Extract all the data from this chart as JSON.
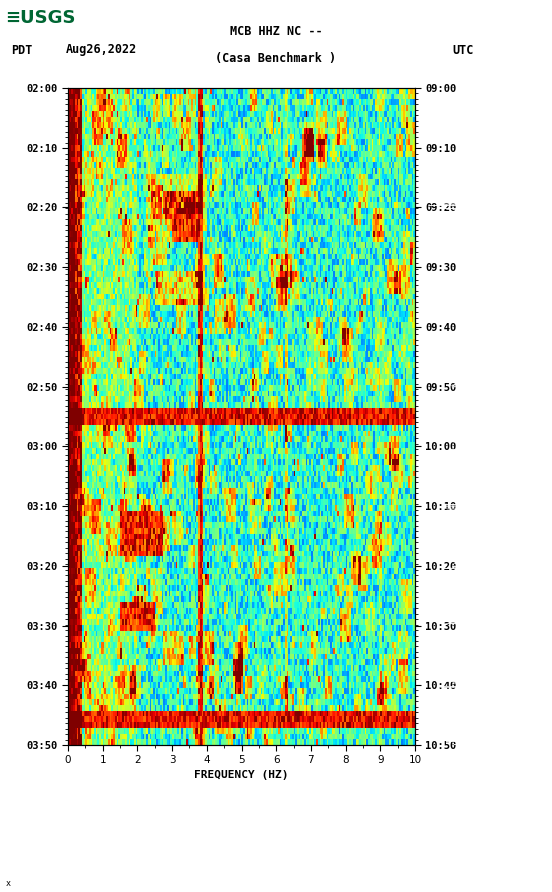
{
  "title_line1": "MCB HHZ NC --",
  "title_line2": "(Casa Benchmark )",
  "date": "Aug26,2022",
  "left_label": "PDT",
  "right_label": "UTC",
  "freq_label": "FREQUENCY (HZ)",
  "freq_min": 0,
  "freq_max": 10,
  "pdt_ticks": [
    "02:00",
    "02:10",
    "02:20",
    "02:30",
    "02:40",
    "02:50",
    "03:00",
    "03:10",
    "03:20",
    "03:30",
    "03:40",
    "03:50"
  ],
  "utc_ticks": [
    "09:00",
    "09:10",
    "09:20",
    "09:30",
    "09:40",
    "09:50",
    "10:00",
    "10:10",
    "10:20",
    "10:30",
    "10:40",
    "10:50"
  ],
  "n_time": 115,
  "n_freq": 200,
  "bg_color": "#ffffff",
  "colormap": "jet",
  "seed": 42,
  "usgs_color": "#006633",
  "fig_width": 5.52,
  "fig_height": 8.92,
  "dpi": 100
}
